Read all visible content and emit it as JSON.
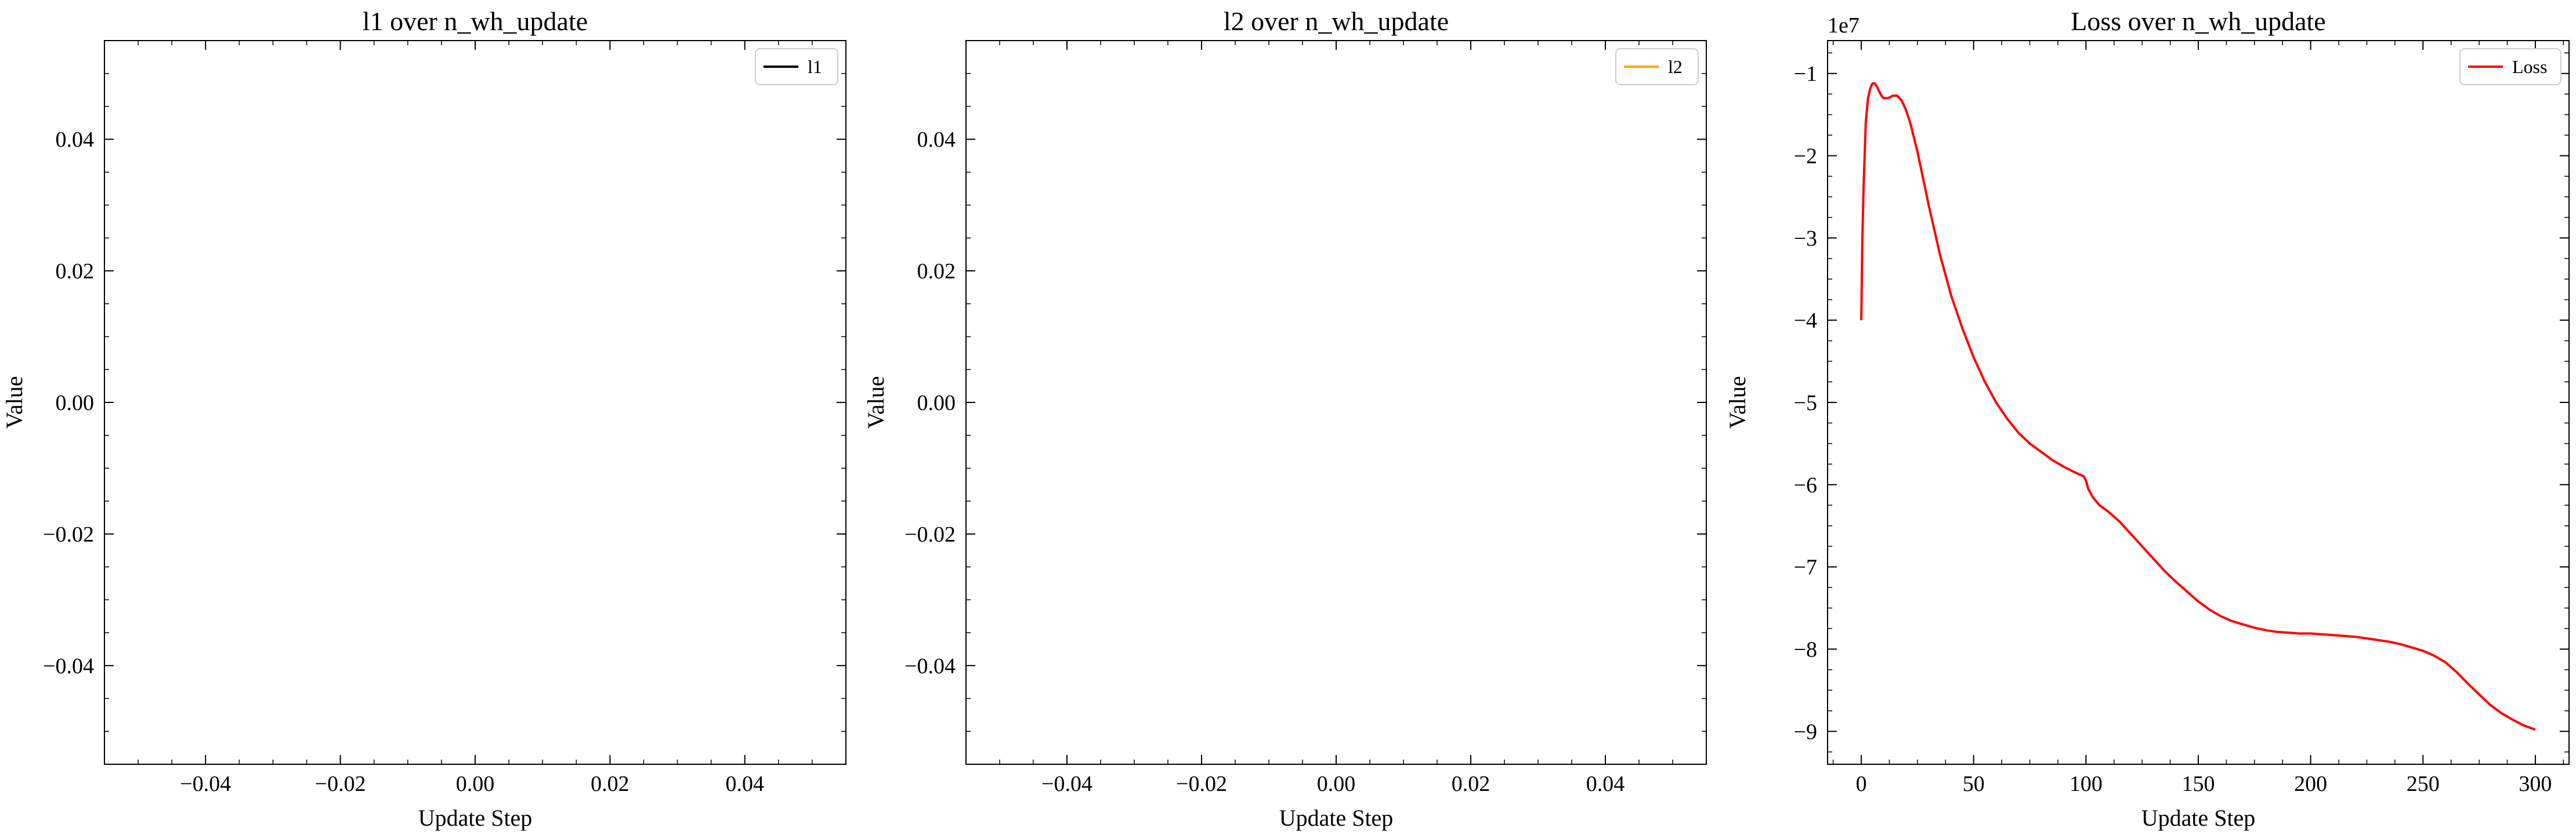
{
  "chart_data": [
    {
      "type": "line",
      "title": "l1 over n_wh_update",
      "xlabel": "Update Step",
      "ylabel": "Value",
      "xlim": [
        -0.055,
        0.055
      ],
      "ylim": [
        -0.055,
        0.055
      ],
      "xticks": [
        -0.04,
        -0.02,
        0.0,
        0.02,
        0.04
      ],
      "xtick_labels": [
        "−0.04",
        "−0.02",
        "0.00",
        "0.02",
        "0.04"
      ],
      "yticks": [
        -0.04,
        -0.02,
        0.0,
        0.02,
        0.04
      ],
      "ytick_labels": [
        "−0.04",
        "−0.02",
        "0.00",
        "0.02",
        "0.04"
      ],
      "legend_position": "top-right",
      "series": [
        {
          "name": "l1",
          "color": "#000000",
          "x": [],
          "y": []
        }
      ]
    },
    {
      "type": "line",
      "title": "l2 over n_wh_update",
      "xlabel": "Update Step",
      "ylabel": "Value",
      "xlim": [
        -0.055,
        0.055
      ],
      "ylim": [
        -0.055,
        0.055
      ],
      "xticks": [
        -0.04,
        -0.02,
        0.0,
        0.02,
        0.04
      ],
      "xtick_labels": [
        "−0.04",
        "−0.02",
        "0.00",
        "0.02",
        "0.04"
      ],
      "yticks": [
        -0.04,
        -0.02,
        0.0,
        0.02,
        0.04
      ],
      "ytick_labels": [
        "−0.04",
        "−0.02",
        "0.00",
        "0.02",
        "0.04"
      ],
      "legend_position": "top-right",
      "series": [
        {
          "name": "l2",
          "color": "#ffa500",
          "x": [],
          "y": []
        }
      ]
    },
    {
      "type": "line",
      "title": "Loss over n_wh_update",
      "xlabel": "Update Step",
      "ylabel": "Value",
      "offset_label": "1e7",
      "xlim": [
        -15,
        315
      ],
      "ylim": [
        -9.4,
        -0.6
      ],
      "xticks": [
        0,
        50,
        100,
        150,
        200,
        250,
        300
      ],
      "xtick_labels": [
        "0",
        "50",
        "100",
        "150",
        "200",
        "250",
        "300"
      ],
      "yticks": [
        -9,
        -8,
        -7,
        -6,
        -5,
        -4,
        -3,
        -2,
        -1
      ],
      "ytick_labels": [
        "−9",
        "−8",
        "−7",
        "−6",
        "−5",
        "−4",
        "−3",
        "−2",
        "−1"
      ],
      "legend_position": "top-right",
      "series": [
        {
          "name": "Loss",
          "color": "#ff0000",
          "x": [
            0,
            0.5,
            1,
            2,
            3,
            4,
            5,
            6,
            7,
            8,
            9,
            10,
            12,
            14,
            16,
            18,
            20,
            22,
            25,
            30,
            35,
            40,
            45,
            50,
            55,
            60,
            65,
            70,
            75,
            80,
            85,
            90,
            95,
            99,
            100,
            101,
            103,
            106,
            110,
            115,
            120,
            125,
            130,
            135,
            140,
            145,
            150,
            155,
            160,
            165,
            170,
            175,
            180,
            185,
            190,
            195,
            200,
            205,
            210,
            215,
            220,
            225,
            230,
            235,
            240,
            245,
            250,
            255,
            260,
            265,
            270,
            275,
            280,
            285,
            290,
            295,
            300
          ],
          "y": [
            -4.0,
            -3.0,
            -2.4,
            -1.6,
            -1.3,
            -1.18,
            -1.12,
            -1.12,
            -1.16,
            -1.22,
            -1.27,
            -1.3,
            -1.3,
            -1.27,
            -1.27,
            -1.33,
            -1.45,
            -1.62,
            -1.95,
            -2.6,
            -3.2,
            -3.7,
            -4.1,
            -4.45,
            -4.75,
            -5.0,
            -5.2,
            -5.37,
            -5.5,
            -5.6,
            -5.7,
            -5.78,
            -5.85,
            -5.9,
            -5.95,
            -6.05,
            -6.15,
            -6.25,
            -6.33,
            -6.45,
            -6.6,
            -6.75,
            -6.9,
            -7.05,
            -7.18,
            -7.3,
            -7.42,
            -7.52,
            -7.6,
            -7.66,
            -7.7,
            -7.74,
            -7.77,
            -7.79,
            -7.8,
            -7.81,
            -7.81,
            -7.82,
            -7.83,
            -7.84,
            -7.85,
            -7.87,
            -7.89,
            -7.91,
            -7.94,
            -7.98,
            -8.02,
            -8.08,
            -8.16,
            -8.28,
            -8.42,
            -8.55,
            -8.68,
            -8.78,
            -8.86,
            -8.93,
            -8.98
          ]
        }
      ]
    }
  ]
}
